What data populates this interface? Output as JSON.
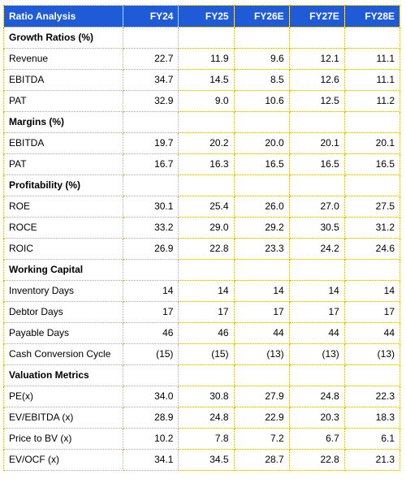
{
  "table": {
    "header": [
      "Ratio Analysis",
      "FY24",
      "FY25",
      "FY26E",
      "FY27E",
      "FY28E"
    ],
    "sections": [
      {
        "title": "Growth Ratios (%)",
        "rows": [
          {
            "label": "Revenue",
            "values": [
              "22.7",
              "11.9",
              "9.6",
              "12.1",
              "11.1"
            ]
          },
          {
            "label": "EBITDA",
            "values": [
              "34.7",
              "14.5",
              "8.5",
              "12.6",
              "11.1"
            ]
          },
          {
            "label": "PAT",
            "values": [
              "32.9",
              "9.0",
              "10.6",
              "12.5",
              "11.2"
            ]
          }
        ]
      },
      {
        "title": "Margins (%)",
        "rows": [
          {
            "label": "EBITDA",
            "values": [
              "19.7",
              "20.2",
              "20.0",
              "20.1",
              "20.1"
            ]
          },
          {
            "label": "PAT",
            "values": [
              "16.7",
              "16.3",
              "16.5",
              "16.5",
              "16.5"
            ]
          }
        ]
      },
      {
        "title": "Profitability (%)",
        "rows": [
          {
            "label": "ROE",
            "values": [
              "30.1",
              "25.4",
              "26.0",
              "27.0",
              "27.5"
            ]
          },
          {
            "label": "ROCE",
            "values": [
              "33.2",
              "29.0",
              "29.2",
              "30.5",
              "31.2"
            ]
          },
          {
            "label": "ROIC",
            "values": [
              "26.9",
              "22.8",
              "23.3",
              "24.2",
              "24.6"
            ]
          }
        ]
      },
      {
        "title": "Working Capital",
        "rows": [
          {
            "label": "Inventory Days",
            "values": [
              "14",
              "14",
              "14",
              "14",
              "14"
            ]
          },
          {
            "label": "Debtor Days",
            "values": [
              "17",
              "17",
              "17",
              "17",
              "17"
            ]
          },
          {
            "label": "Payable Days",
            "values": [
              "46",
              "46",
              "44",
              "44",
              "44"
            ]
          },
          {
            "label": "Cash Conversion Cycle",
            "values": [
              "(15)",
              "(15)",
              "(13)",
              "(13)",
              "(13)"
            ]
          }
        ]
      },
      {
        "title": "Valuation Metrics",
        "rows": [
          {
            "label": "PE(x)",
            "values": [
              "34.0",
              "30.8",
              "27.9",
              "24.8",
              "22.3"
            ]
          },
          {
            "label": "EV/EBITDA (x)",
            "values": [
              "28.9",
              "24.8",
              "22.9",
              "20.3",
              "18.3"
            ]
          },
          {
            "label": "Price to BV (x)",
            "values": [
              "10.2",
              "7.8",
              "7.2",
              "6.7",
              "6.1"
            ]
          },
          {
            "label": "EV/OCF (x)",
            "values": [
              "34.1",
              "34.5",
              "28.7",
              "22.8",
              "21.3"
            ]
          }
        ]
      }
    ]
  },
  "colors": {
    "header_bg": "#1f5bd6",
    "header_text": "#ffffff",
    "border": "#d8b400"
  }
}
